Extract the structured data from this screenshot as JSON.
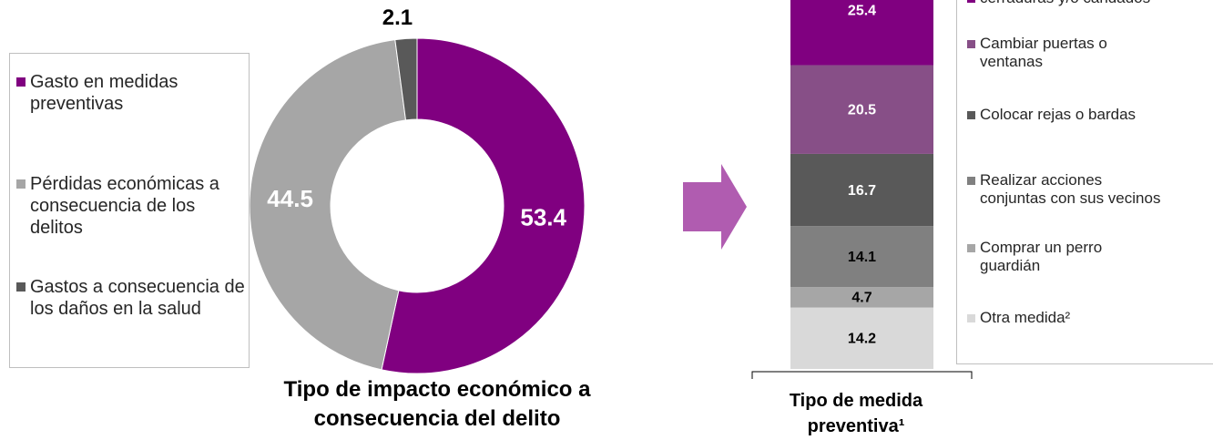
{
  "chart_data": [
    {
      "type": "donut",
      "title": "Tipo de impacto económico a consecuencia del delito",
      "categories": [
        "Gasto en medidas preventivas",
        "Pérdidas económicas a consecuencia de los delitos",
        "Gastos a consecuencia de los daños en la salud"
      ],
      "values": [
        53.4,
        44.5,
        2.1
      ],
      "colors": [
        "#800080",
        "#a6a6a6",
        "#595959"
      ]
    },
    {
      "type": "stacked_bar",
      "title": "Tipo de medida preventiva¹",
      "series": [
        {
          "name": "cerraduras y/o candados",
          "color": "#800080",
          "values": [
            25.4
          ]
        },
        {
          "name": "Cambiar puertas o ventanas",
          "color": "#874f87",
          "values": [
            20.5
          ]
        },
        {
          "name": "Colocar rejas o bardas",
          "color": "#595959",
          "values": [
            16.7
          ]
        },
        {
          "name": "Realizar acciones conjuntas con sus vecinos",
          "color": "#808080",
          "values": [
            14.1
          ]
        },
        {
          "name": "Comprar un perro guardián",
          "color": "#a6a6a6",
          "values": [
            4.7
          ]
        },
        {
          "name": "Otra medida²",
          "color": "#d9d9d9",
          "values": [
            14.2
          ]
        }
      ]
    }
  ]
}
